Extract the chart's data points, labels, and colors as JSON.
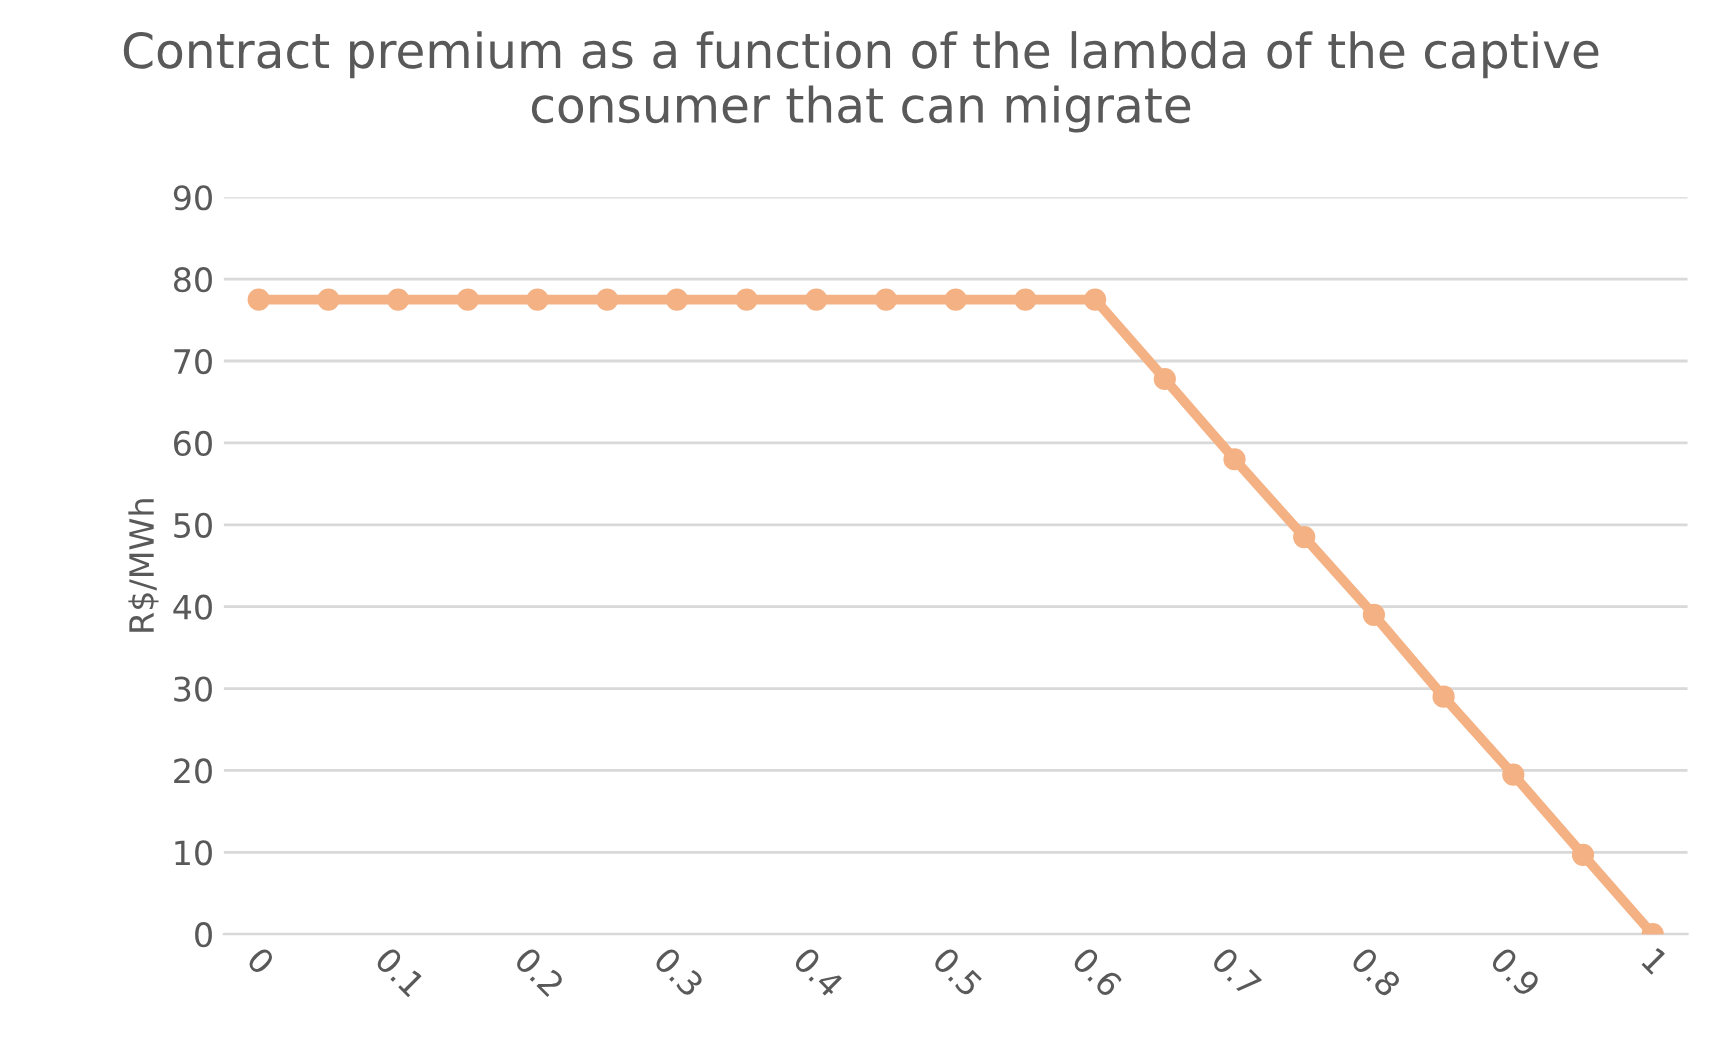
{
  "chart_data": {
    "type": "line",
    "title": "Contract premium as a function of the lambda of the captive consumer that can migrate",
    "ylabel": "R$/MWh",
    "categories": [
      "0",
      null,
      "0.1",
      null,
      "0.2",
      null,
      "0.3",
      null,
      "0.4",
      null,
      "0.5",
      null,
      "0.6",
      null,
      "0.7",
      null,
      "0.8",
      null,
      "0.9",
      null,
      "1"
    ],
    "series": [
      {
        "color": "#f4b183",
        "values": [
          77.5,
          77.5,
          77.5,
          77.5,
          77.5,
          77.5,
          77.5,
          77.5,
          77.5,
          77.5,
          77.5,
          77.5,
          77.5,
          67.8,
          58,
          48.5,
          39,
          29,
          19.5,
          9.7,
          0
        ]
      }
    ],
    "ylim": [
      0,
      90
    ],
    "yticks": [
      0,
      10,
      20,
      30,
      40,
      50,
      60,
      70,
      80,
      90
    ],
    "grid": "y",
    "marker": "circle",
    "line_style": "solid"
  }
}
